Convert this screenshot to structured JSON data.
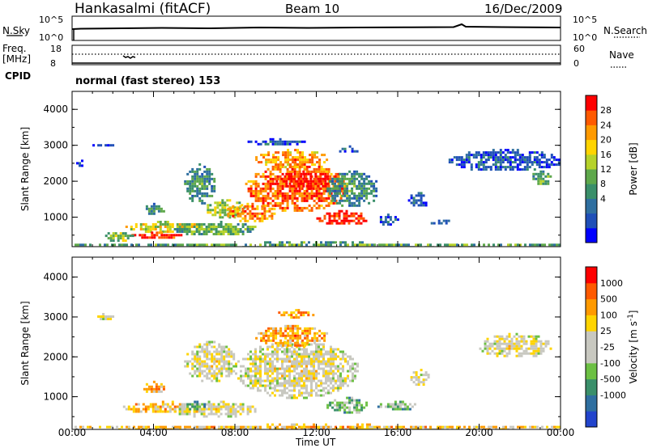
{
  "header": {
    "station": "Hankasalmi (fitACF)",
    "beam": "Beam 10",
    "date": "16/Dec/2009"
  },
  "status_panel": {
    "nsky_label": "N.Sky",
    "nsky_ticks": [
      "10^5",
      "10^0"
    ],
    "nsearch_label": "N.Search",
    "nsearch_ticks": [
      "10^5",
      "10^0"
    ],
    "freq_label_1": "Freq.",
    "freq_label_2": "[MHz]",
    "freq_ticks": [
      "18",
      "8"
    ],
    "nave_label": "Nave",
    "nave_ticks": [
      "60",
      "0"
    ],
    "cpid_label": "CPID",
    "cpid_text": "normal (fast stereo) 153"
  },
  "chart_data": [
    {
      "type": "heatmap",
      "name_in_figure": "Power",
      "ylabel": "Slant Range [km]",
      "y_ticks": [
        "4000",
        "3000",
        "2000",
        "1000"
      ],
      "ylim": [
        180,
        4500
      ],
      "xlabel": "Time UT",
      "x_ticks": [
        "00:00",
        "04:00",
        "08:00",
        "12:00",
        "16:00",
        "20:00",
        "00:00"
      ],
      "xlim_hours": [
        0,
        24
      ],
      "colorbar_label": "Power [dB]",
      "colorbar_ticks": [
        "28",
        "24",
        "20",
        "16",
        "12",
        "8",
        "4"
      ],
      "colorbar_colors": [
        "#0000ff",
        "#1f4fb8",
        "#2f6fa0",
        "#3a8f6a",
        "#5ea84b",
        "#b6d22a",
        "#ffd400",
        "#ff9a00",
        "#ff5a00",
        "#ff0000"
      ],
      "regions": [
        {
          "t": [
            0.0,
            24.0
          ],
          "r": [
            180,
            330
          ],
          "level": 0.35
        },
        {
          "t": [
            1.0,
            2.0
          ],
          "r": [
            2950,
            3100
          ],
          "level": 0.12
        },
        {
          "t": [
            0.2,
            0.6
          ],
          "r": [
            2450,
            2600
          ],
          "level": 0.15
        },
        {
          "t": [
            2.5,
            6.5
          ],
          "r": [
            600,
            900
          ],
          "level": 0.55
        },
        {
          "t": [
            2.8,
            5.5
          ],
          "r": [
            450,
            600
          ],
          "level": 0.9
        },
        {
          "t": [
            1.5,
            3.0
          ],
          "r": [
            350,
            650
          ],
          "level": 0.45
        },
        {
          "t": [
            3.5,
            4.5
          ],
          "r": [
            1100,
            1400
          ],
          "level": 0.3
        },
        {
          "t": [
            5.0,
            9.0
          ],
          "r": [
            500,
            900
          ],
          "level": 0.4
        },
        {
          "t": [
            5.5,
            7.0
          ],
          "r": [
            1400,
            2500
          ],
          "level": 0.3
        },
        {
          "t": [
            6.5,
            8.5
          ],
          "r": [
            1000,
            1500
          ],
          "level": 0.5
        },
        {
          "t": [
            7.5,
            10.0
          ],
          "r": [
            900,
            1400
          ],
          "level": 0.75
        },
        {
          "t": [
            8.5,
            13.5
          ],
          "r": [
            1200,
            2500
          ],
          "level": 0.8
        },
        {
          "t": [
            9.0,
            12.5
          ],
          "r": [
            2400,
            2900
          ],
          "level": 0.7
        },
        {
          "t": [
            10.0,
            13.0
          ],
          "r": [
            1800,
            2300
          ],
          "level": 0.95
        },
        {
          "t": [
            12.0,
            14.5
          ],
          "r": [
            800,
            1200
          ],
          "level": 0.9
        },
        {
          "t": [
            12.5,
            15.0
          ],
          "r": [
            1300,
            2300
          ],
          "level": 0.3
        },
        {
          "t": [
            8.5,
            11.5
          ],
          "r": [
            3000,
            3200
          ],
          "level": 0.15
        },
        {
          "t": [
            13.0,
            14.0
          ],
          "r": [
            2800,
            3000
          ],
          "level": 0.15
        },
        {
          "t": [
            15.0,
            16.0
          ],
          "r": [
            800,
            1100
          ],
          "level": 0.15
        },
        {
          "t": [
            16.5,
            17.5
          ],
          "r": [
            1300,
            1700
          ],
          "level": 0.15
        },
        {
          "t": [
            17.5,
            18.5
          ],
          "r": [
            800,
            1000
          ],
          "level": 0.2
        },
        {
          "t": [
            18.5,
            24.0
          ],
          "r": [
            2300,
            2900
          ],
          "level": 0.15
        },
        {
          "t": [
            22.5,
            23.5
          ],
          "r": [
            1900,
            2300
          ],
          "level": 0.4
        }
      ]
    },
    {
      "type": "heatmap",
      "name_in_figure": "Velocity",
      "ylabel": "Slant Range [km]",
      "y_ticks": [
        "4000",
        "3000",
        "2000",
        "1000"
      ],
      "ylim": [
        180,
        4500
      ],
      "xlabel": "Time UT",
      "x_ticks": [
        "00:00",
        "04:00",
        "08:00",
        "12:00",
        "16:00",
        "20:00",
        "00:00"
      ],
      "xlim_hours": [
        0,
        24
      ],
      "colorbar_label": "Velocity [m s",
      "colorbar_label_sup": "-1",
      "colorbar_label_end": "]",
      "colorbar_ticks": [
        "1000",
        "500",
        "100",
        "25",
        "-25",
        "-100",
        "-500",
        "-1000"
      ],
      "colorbar_colors": [
        "#2244cc",
        "#2f6fa0",
        "#3a8f6a",
        "#6cc043",
        "#c8c8c0",
        "#c8c8c0",
        "#ffd400",
        "#ff9a00",
        "#ff5a00",
        "#ff0000"
      ],
      "regions": [
        {
          "t": [
            0.0,
            24.0
          ],
          "r": [
            180,
            330
          ],
          "level": 0.62
        },
        {
          "t": [
            1.0,
            2.0
          ],
          "r": [
            2950,
            3100
          ],
          "level": 0.5
        },
        {
          "t": [
            2.5,
            6.5
          ],
          "r": [
            600,
            900
          ],
          "level": 0.64
        },
        {
          "t": [
            3.5,
            4.5
          ],
          "r": [
            1100,
            1400
          ],
          "level": 0.66
        },
        {
          "t": [
            5.0,
            9.0
          ],
          "r": [
            500,
            900
          ],
          "level": 0.5
        },
        {
          "t": [
            5.5,
            8.0
          ],
          "r": [
            1400,
            2400
          ],
          "level": 0.5
        },
        {
          "t": [
            8.0,
            14.0
          ],
          "r": [
            1000,
            2400
          ],
          "level": 0.5
        },
        {
          "t": [
            9.0,
            12.5
          ],
          "r": [
            2300,
            2800
          ],
          "level": 0.7
        },
        {
          "t": [
            10.0,
            12.0
          ],
          "r": [
            3000,
            3200
          ],
          "level": 0.72
        },
        {
          "t": [
            12.5,
            14.5
          ],
          "r": [
            600,
            1000
          ],
          "level": 0.32
        },
        {
          "t": [
            15.0,
            17.0
          ],
          "r": [
            700,
            900
          ],
          "level": 0.32
        },
        {
          "t": [
            16.5,
            17.5
          ],
          "r": [
            1300,
            1700
          ],
          "level": 0.5
        },
        {
          "t": [
            20.0,
            23.5
          ],
          "r": [
            2000,
            2600
          ],
          "level": 0.5
        },
        {
          "t": [
            5.5,
            6.5
          ],
          "r": [
            700,
            900
          ],
          "level": 0.3
        }
      ]
    }
  ]
}
